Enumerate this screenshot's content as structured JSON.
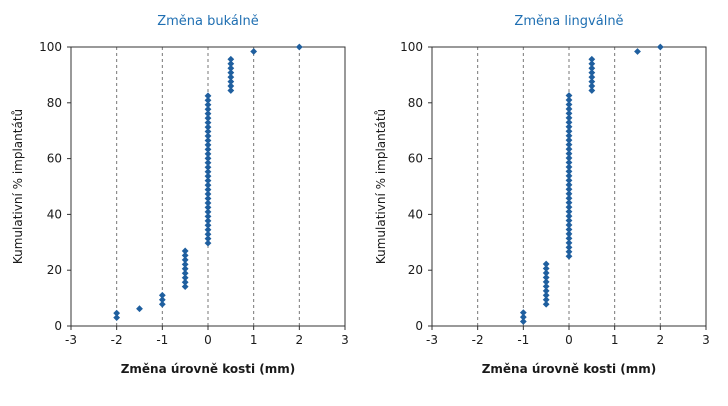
{
  "chart_data": [
    {
      "type": "scatter",
      "title": "Změna bukálně",
      "xlabel": "Změna úrovně kosti (mm)",
      "ylabel": "Kumulativní % implantátů",
      "xlim": [
        -3,
        3
      ],
      "ylim": [
        0,
        100
      ],
      "xticks": [
        -3,
        -2,
        -1,
        0,
        1,
        2,
        3
      ],
      "yticks": [
        0,
        20,
        40,
        60,
        80,
        100
      ],
      "x_tick_labels": [
        "-3",
        "-2",
        "-1",
        "0",
        "1",
        "2",
        "3"
      ],
      "y_tick_labels": [
        "0",
        "20",
        "40",
        "60",
        "80",
        "100"
      ],
      "grid": "vertical dashed at x ticks",
      "marker": "diamond",
      "color": "#1f5f9f",
      "columns": [
        {
          "x": -2,
          "y_from": 3,
          "y_to": 4.6,
          "step": 1.6
        },
        {
          "x": -1.5,
          "y_from": 6.2,
          "y_to": 6.2,
          "step": 1.6
        },
        {
          "x": -1,
          "y_from": 7.8,
          "y_to": 12.5,
          "step": 1.6
        },
        {
          "x": -0.5,
          "y_from": 14.1,
          "y_to": 28.1,
          "step": 1.6
        },
        {
          "x": 0,
          "y_from": 29.7,
          "y_to": 82.8,
          "step": 1.6
        },
        {
          "x": 0.5,
          "y_from": 84.4,
          "y_to": 96.9,
          "step": 1.6
        },
        {
          "x": 1,
          "y_from": 98.4,
          "y_to": 98.4,
          "step": 1.6
        },
        {
          "x": 2,
          "y_from": 100,
          "y_to": 100,
          "step": 1.6
        }
      ]
    },
    {
      "type": "scatter",
      "title": "Změna lingválně",
      "xlabel": "Změna úrovně kosti (mm)",
      "ylabel": "Kumulativní % implantátů",
      "xlim": [
        -3,
        3
      ],
      "ylim": [
        0,
        100
      ],
      "xticks": [
        -3,
        -2,
        -1,
        0,
        1,
        2,
        3
      ],
      "yticks": [
        0,
        20,
        40,
        60,
        80,
        100
      ],
      "x_tick_labels": [
        "-3",
        "-2",
        "-1",
        "0",
        "1",
        "2",
        "3"
      ],
      "y_tick_labels": [
        "0",
        "20",
        "40",
        "60",
        "80",
        "100"
      ],
      "grid": "vertical dashed at x ticks",
      "marker": "diamond",
      "color": "#1f5f9f",
      "columns": [
        {
          "x": -1,
          "y_from": 1.6,
          "y_to": 6.2,
          "step": 1.6
        },
        {
          "x": -0.5,
          "y_from": 7.8,
          "y_to": 23.4,
          "step": 1.6
        },
        {
          "x": 0,
          "y_from": 25,
          "y_to": 82.8,
          "step": 1.6
        },
        {
          "x": 0.5,
          "y_from": 84.4,
          "y_to": 96.9,
          "step": 1.6
        },
        {
          "x": 1.5,
          "y_from": 98.4,
          "y_to": 98.4,
          "step": 1.6
        },
        {
          "x": 2,
          "y_from": 100,
          "y_to": 100,
          "step": 1.6
        }
      ]
    }
  ]
}
